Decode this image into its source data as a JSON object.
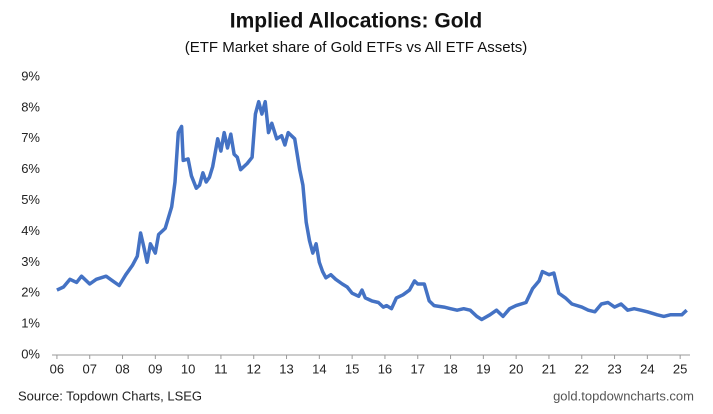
{
  "chart_data": {
    "type": "line",
    "title": "Implied Allocations: Gold",
    "subtitle": "(ETF Market share of Gold ETFs vs All ETF Assets)",
    "source": "Source: Topdown Charts, LSEG",
    "credit": "gold.topdowncharts.com",
    "color": "#4472c4",
    "grid": false,
    "x": [
      6.0,
      6.2,
      6.4,
      6.6,
      6.75,
      7.0,
      7.2,
      7.5,
      7.7,
      7.9,
      8.1,
      8.3,
      8.45,
      8.55,
      8.65,
      8.75,
      8.85,
      9.0,
      9.1,
      9.3,
      9.5,
      9.6,
      9.7,
      9.8,
      9.85,
      10.0,
      10.1,
      10.25,
      10.35,
      10.45,
      10.55,
      10.65,
      10.75,
      10.9,
      11.0,
      11.1,
      11.2,
      11.3,
      11.4,
      11.5,
      11.6,
      11.8,
      11.95,
      12.05,
      12.15,
      12.25,
      12.35,
      12.45,
      12.55,
      12.7,
      12.85,
      12.95,
      13.05,
      13.25,
      13.4,
      13.5,
      13.6,
      13.7,
      13.8,
      13.9,
      14.0,
      14.1,
      14.2,
      14.35,
      14.5,
      14.7,
      14.85,
      15.0,
      15.2,
      15.3,
      15.4,
      15.6,
      15.8,
      15.95,
      16.05,
      16.2,
      16.35,
      16.55,
      16.75,
      16.9,
      17.0,
      17.2,
      17.35,
      17.5,
      17.8,
      18.0,
      18.2,
      18.4,
      18.6,
      18.8,
      18.95,
      19.2,
      19.4,
      19.6,
      19.8,
      20.0,
      20.3,
      20.5,
      20.7,
      20.8,
      21.0,
      21.15,
      21.3,
      21.5,
      21.7,
      22.0,
      22.2,
      22.4,
      22.6,
      22.8,
      23.0,
      23.2,
      23.4,
      23.6,
      23.8,
      24.0,
      24.3,
      24.5,
      24.7,
      24.9,
      25.05,
      25.2
    ],
    "values": [
      2.1,
      2.2,
      2.45,
      2.35,
      2.55,
      2.3,
      2.45,
      2.55,
      2.4,
      2.25,
      2.6,
      2.9,
      3.2,
      3.95,
      3.5,
      3.0,
      3.6,
      3.3,
      3.9,
      4.1,
      4.8,
      5.6,
      7.2,
      7.4,
      6.3,
      6.35,
      5.8,
      5.4,
      5.5,
      5.9,
      5.6,
      5.75,
      6.1,
      7.0,
      6.6,
      7.2,
      6.7,
      7.15,
      6.5,
      6.4,
      6.0,
      6.2,
      6.4,
      7.8,
      8.2,
      7.8,
      8.2,
      7.2,
      7.5,
      7.0,
      7.1,
      6.8,
      7.2,
      7.0,
      6.0,
      5.5,
      4.3,
      3.7,
      3.3,
      3.6,
      3.0,
      2.7,
      2.5,
      2.6,
      2.45,
      2.3,
      2.2,
      2.0,
      1.9,
      2.1,
      1.85,
      1.75,
      1.7,
      1.55,
      1.6,
      1.5,
      1.85,
      1.95,
      2.1,
      2.4,
      2.3,
      2.3,
      1.75,
      1.6,
      1.55,
      1.5,
      1.45,
      1.5,
      1.45,
      1.25,
      1.15,
      1.3,
      1.45,
      1.25,
      1.5,
      1.6,
      1.7,
      2.15,
      2.4,
      2.7,
      2.6,
      2.65,
      2.0,
      1.85,
      1.65,
      1.55,
      1.45,
      1.4,
      1.65,
      1.7,
      1.55,
      1.65,
      1.45,
      1.5,
      1.45,
      1.4,
      1.3,
      1.25,
      1.3,
      1.3,
      1.3,
      1.45
    ],
    "xlim": [
      5.85,
      25.3
    ],
    "xticks": [
      {
        "value": 6,
        "label": "06"
      },
      {
        "value": 7,
        "label": "07"
      },
      {
        "value": 8,
        "label": "08"
      },
      {
        "value": 9,
        "label": "09"
      },
      {
        "value": 10,
        "label": "10"
      },
      {
        "value": 11,
        "label": "11"
      },
      {
        "value": 12,
        "label": "12"
      },
      {
        "value": 13,
        "label": "13"
      },
      {
        "value": 14,
        "label": "14"
      },
      {
        "value": 15,
        "label": "15"
      },
      {
        "value": 16,
        "label": "16"
      },
      {
        "value": 17,
        "label": "17"
      },
      {
        "value": 18,
        "label": "18"
      },
      {
        "value": 19,
        "label": "19"
      },
      {
        "value": 20,
        "label": "20"
      },
      {
        "value": 21,
        "label": "21"
      },
      {
        "value": 22,
        "label": "22"
      },
      {
        "value": 23,
        "label": "23"
      },
      {
        "value": 24,
        "label": "24"
      },
      {
        "value": 25,
        "label": "25"
      }
    ],
    "ylim": [
      0,
      9
    ],
    "yticks": [
      {
        "value": 0,
        "label": "0%"
      },
      {
        "value": 1,
        "label": "1%"
      },
      {
        "value": 2,
        "label": "2%"
      },
      {
        "value": 3,
        "label": "3%"
      },
      {
        "value": 4,
        "label": "4%"
      },
      {
        "value": 5,
        "label": "5%"
      },
      {
        "value": 6,
        "label": "6%"
      },
      {
        "value": 7,
        "label": "7%"
      },
      {
        "value": 8,
        "label": "8%"
      },
      {
        "value": 9,
        "label": "9%"
      }
    ]
  }
}
